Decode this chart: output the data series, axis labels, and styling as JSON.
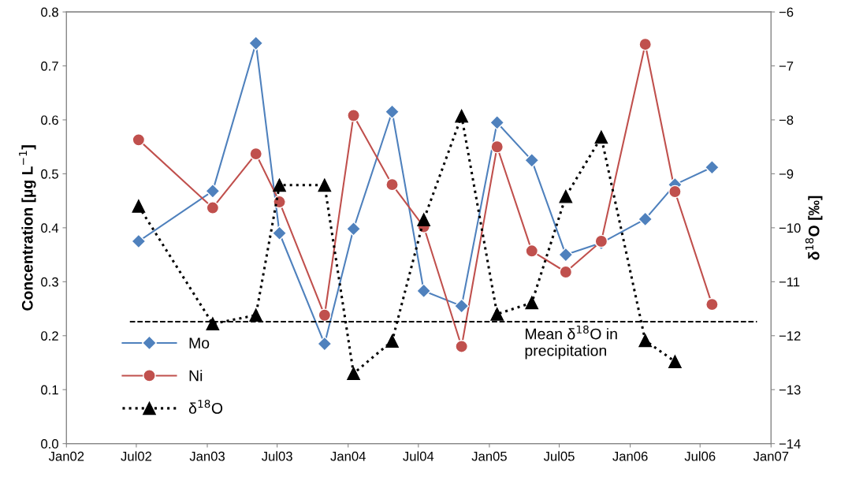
{
  "chart_data": {
    "type": "line",
    "ylabel": "Concentration [µg L$^{−1}$]",
    "y2label": "δ$^{18}$O [‰]",
    "x": [
      "2002-07-07",
      "2003-01-15",
      "2003-05-07",
      "2003-07-07",
      "2003-11-01",
      "2004-01-15",
      "2004-04-24",
      "2004-07-15",
      "2004-10-21",
      "2005-01-21",
      "2005-04-21",
      "2005-07-18",
      "2005-10-18",
      "2006-02-09",
      "2006-04-27",
      "2006-08-01"
    ],
    "series": [
      {
        "name": "Mo",
        "color": "#4f81bd",
        "marker": "diamond",
        "line_style": "solid",
        "values": [
          0.375,
          0.468,
          0.742,
          0.39,
          0.185,
          0.398,
          0.615,
          0.283,
          0.255,
          0.595,
          0.525,
          0.35,
          0.372,
          0.416,
          0.48,
          0.512
        ]
      },
      {
        "name": "Ni",
        "color": "#c0504d",
        "marker": "circle",
        "line_style": "solid",
        "values": [
          0.563,
          0.437,
          0.537,
          0.448,
          0.238,
          0.608,
          0.48,
          0.402,
          0.18,
          0.55,
          0.357,
          0.318,
          0.375,
          0.74,
          0.467,
          0.258
        ]
      },
      {
        "name": "δ$^{18}$O",
        "color": "#000000",
        "marker": "triangle",
        "line_style": "dotted",
        "axis": "y2",
        "x": [
          "2002-07-07",
          "2003-01-15",
          "2003-05-07",
          "2003-07-07",
          "2003-11-01",
          "2004-01-15",
          "2004-04-24",
          "2004-07-15",
          "2004-10-21",
          "2005-01-21",
          "2005-04-21",
          "2005-07-18",
          "2005-10-18",
          "2006-02-09",
          "2006-04-27"
        ],
        "values": [
          -9.6,
          -11.78,
          -11.62,
          -9.21,
          -9.21,
          -12.7,
          -12.1,
          -9.85,
          -7.93,
          -11.6,
          -11.39,
          -9.42,
          -8.32,
          -12.09,
          -12.48
        ]
      }
    ],
    "xlim": [
      "2002-01-01",
      "2007-01-01"
    ],
    "xticks": [
      {
        "value": "2002-01-01",
        "label": "Jan02"
      },
      {
        "value": "2002-07-01",
        "label": "Jul02"
      },
      {
        "value": "2003-01-01",
        "label": "Jan03"
      },
      {
        "value": "2003-07-01",
        "label": "Jul03"
      },
      {
        "value": "2004-01-01",
        "label": "Jan04"
      },
      {
        "value": "2004-07-01",
        "label": "Jul04"
      },
      {
        "value": "2005-01-01",
        "label": "Jan05"
      },
      {
        "value": "2005-07-01",
        "label": "Jul05"
      },
      {
        "value": "2006-01-01",
        "label": "Jan06"
      },
      {
        "value": "2006-07-01",
        "label": "Jul06"
      },
      {
        "value": "2007-01-01",
        "label": "Jan07"
      }
    ],
    "ylim": [
      0,
      0.8
    ],
    "yticks": [
      {
        "value": 0,
        "label": "0.0"
      },
      0.1,
      0.2,
      0.3,
      0.4,
      0.5,
      0.6,
      0.7,
      0.8
    ],
    "y2lim": [
      -14,
      -6
    ],
    "y2ticks": [
      {
        "value": -14,
        "label": "−14"
      },
      {
        "value": -13,
        "label": "−13"
      },
      {
        "value": -12,
        "label": "−12"
      },
      {
        "value": -11,
        "label": "−11"
      },
      {
        "value": -10,
        "label": "−10"
      },
      {
        "value": -9,
        "label": "−9"
      },
      {
        "value": -8,
        "label": "−8"
      },
      {
        "value": -7,
        "label": "−7"
      },
      {
        "value": -6,
        "label": "−6"
      }
    ],
    "ref_lines": [
      {
        "axis": "y2",
        "value": -11.74,
        "label": "Mean δ$^{18}$O in\nprecipitation",
        "color": "#000000",
        "line_style": "dashed"
      }
    ],
    "grid": false,
    "legend": "bottom left"
  }
}
